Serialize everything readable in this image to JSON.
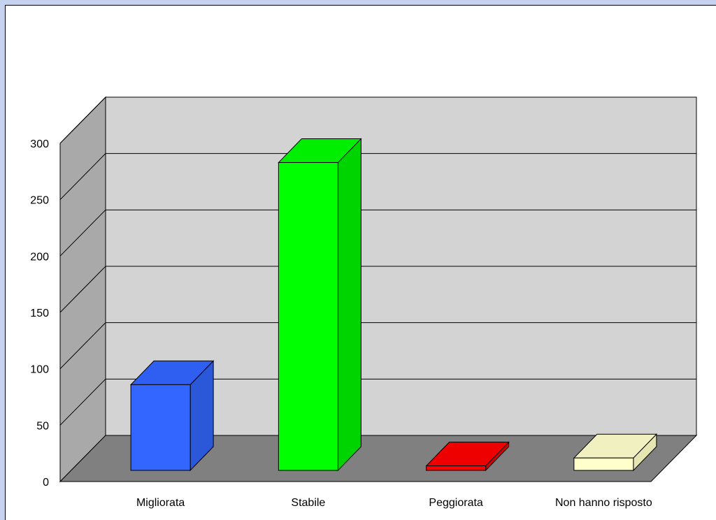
{
  "colors": {
    "page_border": "#c5d3ee",
    "chart_background": "#ffffff",
    "back_wall": "#d3d3d3",
    "side_wall": "#a9a9a9",
    "floor": "#808080"
  },
  "chart_data": {
    "type": "bar",
    "style": "3d-column",
    "title": "",
    "xlabel": "",
    "ylabel": "",
    "ylim": [
      0,
      300
    ],
    "yticks": [
      0,
      50,
      100,
      150,
      200,
      250,
      300
    ],
    "grid": true,
    "legend": "none",
    "categories": [
      "Migliorata",
      "Stabile",
      "Peggiorata",
      "Non hanno risposto"
    ],
    "values": [
      76,
      273,
      4,
      11
    ],
    "bar_colors": [
      {
        "front": "#3366ff",
        "side": "#2b57d9",
        "top": "#2f5ff0"
      },
      {
        "front": "#00ff00",
        "side": "#00d400",
        "top": "#00ee00"
      },
      {
        "front": "#ff0000",
        "side": "#d40000",
        "top": "#ee0000"
      },
      {
        "front": "#ffffcc",
        "side": "#e6e6b3",
        "top": "#f0f0c0"
      }
    ]
  }
}
